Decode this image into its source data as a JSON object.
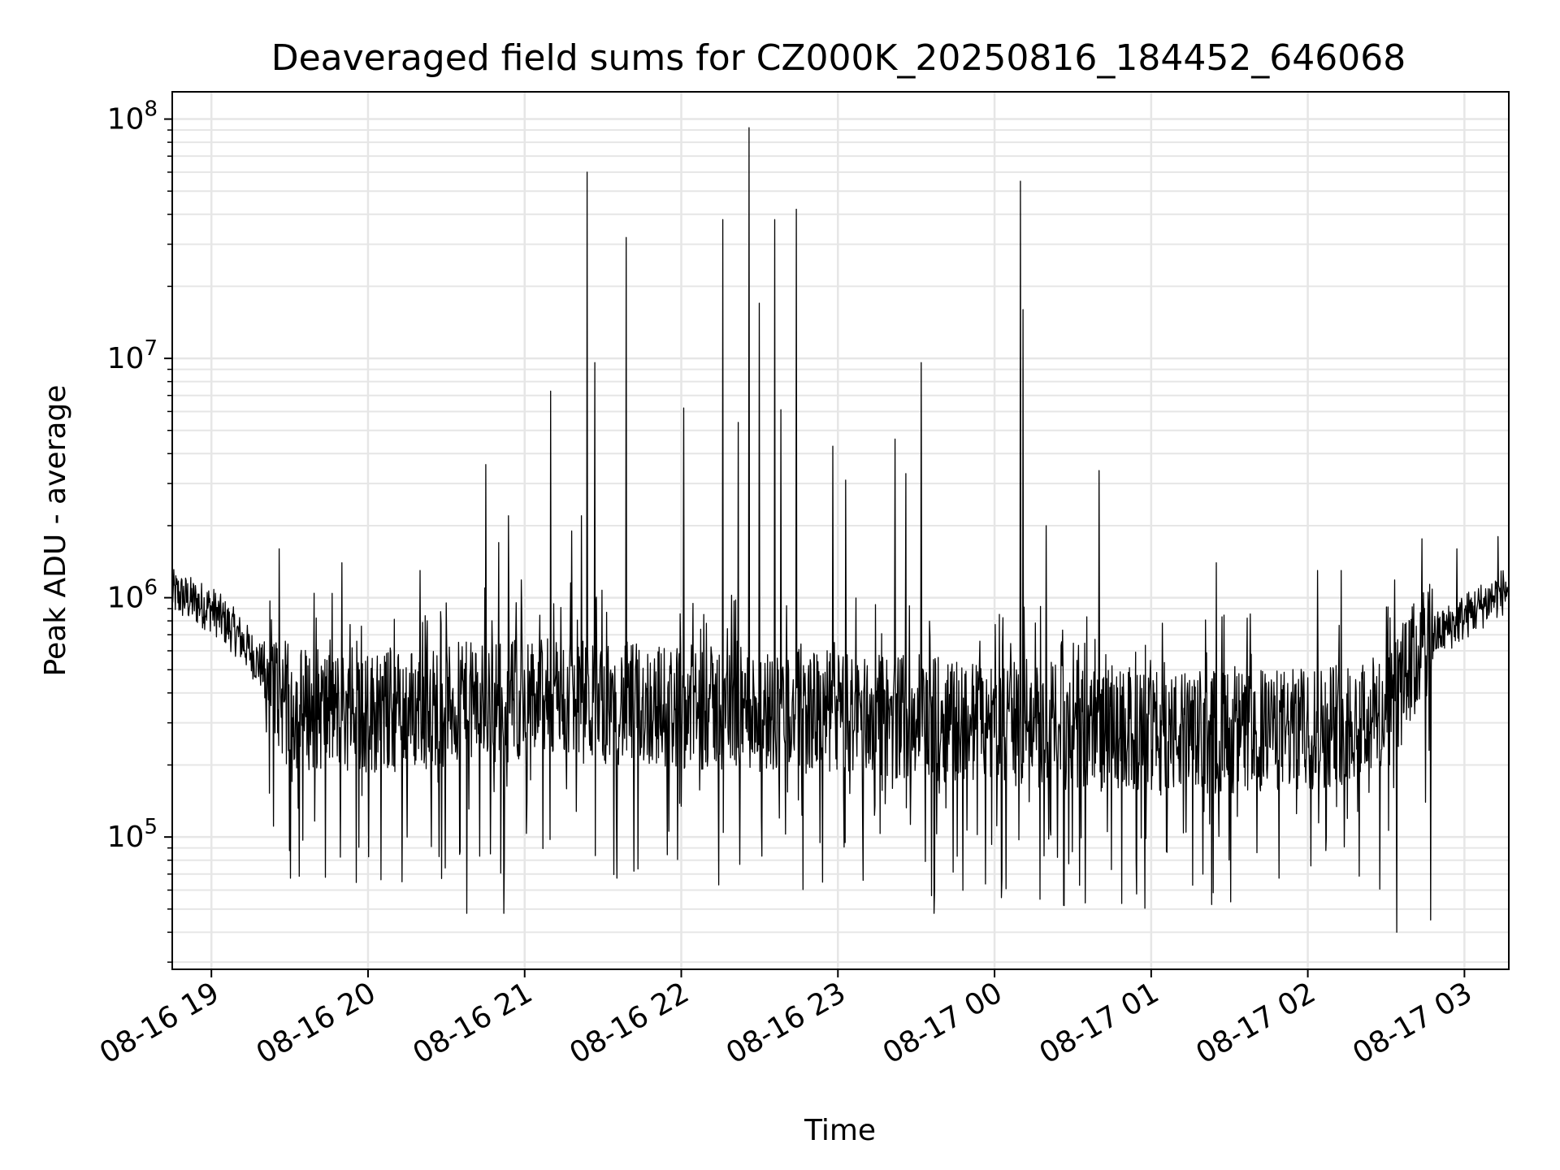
{
  "chart_data": {
    "type": "line",
    "title": "Deaveraged field sums for CZ000K_20250816_184452_646068",
    "xlabel": "Time",
    "ylabel": "Peak ADU - average",
    "yscale": "log",
    "ylim": [
      28000,
      130000000
    ],
    "xlim": [
      "2025-08-16 18:45",
      "2025-08-17 03:17"
    ],
    "grid": true,
    "x_tick_labels": [
      "08-16 19",
      "08-16 20",
      "08-16 21",
      "08-16 22",
      "08-16 23",
      "08-17 00",
      "08-17 01",
      "08-17 02",
      "08-17 03"
    ],
    "x_ticks": [
      "2025-08-16 19:00",
      "2025-08-16 20:00",
      "2025-08-16 21:00",
      "2025-08-16 22:00",
      "2025-08-16 23:00",
      "2025-08-17 00:00",
      "2025-08-17 01:00",
      "2025-08-17 02:00",
      "2025-08-17 03:00"
    ],
    "y_ticks": [
      {
        "value": 100000,
        "base": "10",
        "exp": "5"
      },
      {
        "value": 1000000,
        "base": "10",
        "exp": "6"
      },
      {
        "value": 10000000,
        "base": "10",
        "exp": "7"
      },
      {
        "value": 100000000,
        "base": "10",
        "exp": "8"
      }
    ],
    "line_color": "#000000",
    "baseline": [
      {
        "t": "2025-08-16 18:45",
        "v": 1050000
      },
      {
        "t": "2025-08-16 19:00",
        "v": 900000
      },
      {
        "t": "2025-08-16 19:10",
        "v": 700000
      },
      {
        "t": "2025-08-16 19:20",
        "v": 500000
      },
      {
        "t": "2025-08-16 19:30",
        "v": 350000
      },
      {
        "t": "2025-08-16 20:00",
        "v": 330000
      },
      {
        "t": "2025-08-16 21:00",
        "v": 380000
      },
      {
        "t": "2025-08-16 22:00",
        "v": 350000
      },
      {
        "t": "2025-08-16 23:00",
        "v": 330000
      },
      {
        "t": "2025-08-17 00:00",
        "v": 300000
      },
      {
        "t": "2025-08-17 01:00",
        "v": 270000
      },
      {
        "t": "2025-08-17 02:00",
        "v": 280000
      },
      {
        "t": "2025-08-17 02:30",
        "v": 330000
      },
      {
        "t": "2025-08-17 02:45",
        "v": 650000
      },
      {
        "t": "2025-08-17 03:17",
        "v": 1100000
      }
    ],
    "spikes": [
      {
        "t": "2025-08-16 19:26",
        "v": 1600000
      },
      {
        "t": "2025-08-16 19:50",
        "v": 1400000
      },
      {
        "t": "2025-08-16 20:20",
        "v": 1300000
      },
      {
        "t": "2025-08-16 20:45",
        "v": 3600000
      },
      {
        "t": "2025-08-16 20:54",
        "v": 2200000
      },
      {
        "t": "2025-08-16 20:50",
        "v": 1700000
      },
      {
        "t": "2025-08-16 20:38",
        "v": 48000
      },
      {
        "t": "2025-08-16 20:52",
        "v": 48000
      },
      {
        "t": "2025-08-16 21:10",
        "v": 7300000
      },
      {
        "t": "2025-08-16 21:18",
        "v": 1900000
      },
      {
        "t": "2025-08-16 21:22",
        "v": 2200000
      },
      {
        "t": "2025-08-16 21:24",
        "v": 60000000
      },
      {
        "t": "2025-08-16 21:27",
        "v": 9600000
      },
      {
        "t": "2025-08-16 21:39",
        "v": 32000000
      },
      {
        "t": "2025-08-16 22:01",
        "v": 6200000
      },
      {
        "t": "2025-08-16 22:16",
        "v": 38000000
      },
      {
        "t": "2025-08-16 22:22",
        "v": 5400000
      },
      {
        "t": "2025-08-16 22:26",
        "v": 92000000
      },
      {
        "t": "2025-08-16 22:30",
        "v": 17000000
      },
      {
        "t": "2025-08-16 22:36",
        "v": 38000000
      },
      {
        "t": "2025-08-16 22:38",
        "v": 6100000
      },
      {
        "t": "2025-08-16 22:44",
        "v": 42000000
      },
      {
        "t": "2025-08-16 22:58",
        "v": 4300000
      },
      {
        "t": "2025-08-16 23:03",
        "v": 3100000
      },
      {
        "t": "2025-08-16 23:22",
        "v": 4600000
      },
      {
        "t": "2025-08-16 23:26",
        "v": 3300000
      },
      {
        "t": "2025-08-16 23:32",
        "v": 9600000
      },
      {
        "t": "2025-08-16 23:37",
        "v": 48000
      },
      {
        "t": "2025-08-17 00:10",
        "v": 55000000
      },
      {
        "t": "2025-08-17 00:11",
        "v": 16000000
      },
      {
        "t": "2025-08-17 00:20",
        "v": 2000000
      },
      {
        "t": "2025-08-17 00:40",
        "v": 3400000
      },
      {
        "t": "2025-08-17 01:25",
        "v": 1400000
      },
      {
        "t": "2025-08-17 02:04",
        "v": 1300000
      },
      {
        "t": "2025-08-17 02:13",
        "v": 1300000
      },
      {
        "t": "2025-08-17 02:34",
        "v": 40000
      },
      {
        "t": "2025-08-17 02:47",
        "v": 45000
      },
      {
        "t": "2025-08-17 02:57",
        "v": 1600000
      },
      {
        "t": "2025-08-17 03:13",
        "v": 1800000
      }
    ]
  }
}
